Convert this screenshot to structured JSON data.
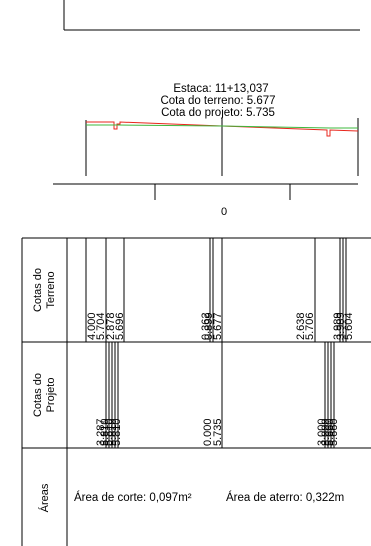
{
  "section": {
    "label_stake": "Estaca: 11+13,037",
    "label_ground": "Cota do terreno: 5.677",
    "label_design": "Cota do projeto: 5.735",
    "axis_zero": "0",
    "colors": {
      "ground": "#e8261c",
      "design": "#3db83d",
      "lines": "#000000"
    }
  },
  "table": {
    "row_terreno": "Cotas do Terreno",
    "row_projeto": "Cotas do Projeto",
    "row_areas": "Áreas",
    "terreno_values": [
      {
        "dist": "4.000",
        "cota": "5.704"
      },
      {
        "dist": "2.878",
        "cota": "5.696"
      },
      {
        "dist": "0.362",
        "cota": "5.677"
      },
      {
        "dist": "2.638",
        "cota": "5.706"
      }
    ],
    "terreno_overlap_a": "0.899",
    "terreno_overlap_b": "3.989",
    "terreno_overlap_c": "5.604",
    "projeto_values": [
      {
        "dist": "3.287",
        "cota": "5.810"
      },
      {
        "dist": "0.000",
        "cota": "5.735"
      },
      {
        "dist": "3.000",
        "cota": "5.660"
      }
    ],
    "area_corte": "Área de corte: 0,097m²",
    "area_aterro": "Área de aterro: 0,322m"
  }
}
